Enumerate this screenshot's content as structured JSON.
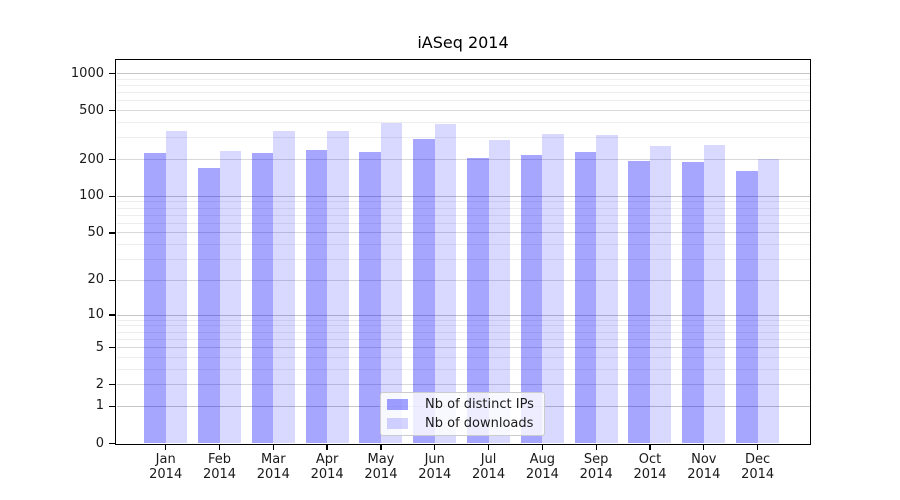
{
  "figure": {
    "background": "#ffffff",
    "text_color": "#1a1a1a"
  },
  "chart_data": {
    "type": "bar",
    "title": "iASeq 2014",
    "x_categories": [
      "Jan",
      "Feb",
      "Mar",
      "Apr",
      "May",
      "Jun",
      "Jul",
      "Aug",
      "Sep",
      "Oct",
      "Nov",
      "Dec"
    ],
    "x_sublabel": "2014",
    "y_scale": "log10(value+1)",
    "ylim": [
      0,
      1280
    ],
    "y_ticks": [
      1000,
      500,
      200,
      100,
      50,
      20,
      10,
      5,
      2,
      1,
      0
    ],
    "series": [
      {
        "name": "Nb of distinct IPs",
        "color": "#0000FF",
        "alpha": 0.35,
        "flat_color": "#A6A6FF",
        "values": [
          225,
          169,
          225,
          238,
          232,
          293,
          207,
          219,
          232,
          195,
          190,
          160
        ]
      },
      {
        "name": "Nb of downloads",
        "color": "#0000FF",
        "alpha": 0.15,
        "flat_color": "#D9D9FF",
        "values": [
          344,
          236,
          340,
          344,
          397,
          390,
          286,
          322,
          318,
          260,
          263,
          201
        ]
      }
    ],
    "legend": {
      "position": "lower-center inside plot",
      "entries": [
        "Nb of distinct IPs",
        "Nb of downloads"
      ]
    },
    "grid": {
      "major_values": [
        1,
        10,
        100,
        1000
      ],
      "labeled_minor_values": [
        2,
        5,
        20,
        50,
        200,
        500
      ],
      "minor_values": [
        3,
        4,
        6,
        7,
        8,
        9,
        30,
        40,
        60,
        70,
        80,
        90,
        300,
        400,
        600,
        700,
        800,
        900
      ],
      "major_color": "#c6c6c6",
      "labeled_minor_color": "#d9d9d9",
      "minor_color": "#ededed"
    }
  }
}
